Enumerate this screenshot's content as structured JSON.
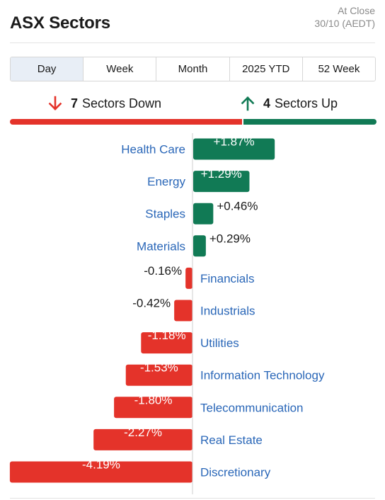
{
  "header": {
    "title": "ASX Sectors",
    "asof_line1": "At Close",
    "asof_line2": "30/10 (AEDT)"
  },
  "tabs": [
    {
      "label": "Day",
      "active": true
    },
    {
      "label": "Week",
      "active": false
    },
    {
      "label": "Month",
      "active": false
    },
    {
      "label": "2025 YTD",
      "active": false
    },
    {
      "label": "52 Week",
      "active": false
    }
  ],
  "summary": {
    "down_count": "7",
    "down_label": "Sectors Down",
    "up_count": "4",
    "up_label": "Sectors Up"
  },
  "colors": {
    "up": "#117a55",
    "down": "#e4332a",
    "label": "#2a67b8"
  },
  "chart_data": {
    "type": "bar",
    "orientation": "horizontal-diverging",
    "categories": [
      "Health Care",
      "Energy",
      "Staples",
      "Materials",
      "Financials",
      "Industrials",
      "Utilities",
      "Information Technology",
      "Telecommunication",
      "Real Estate",
      "Discretionary"
    ],
    "values": [
      1.87,
      1.29,
      0.46,
      0.29,
      -0.16,
      -0.42,
      -1.18,
      -1.53,
      -1.8,
      -2.27,
      -4.19
    ],
    "value_labels": [
      "+1.87%",
      "+1.29%",
      "+0.46%",
      "+0.29%",
      "-0.16%",
      "-0.42%",
      "-1.18%",
      "-1.53%",
      "-1.80%",
      "-2.27%",
      "-4.19%"
    ],
    "unit": "%",
    "title": "",
    "xlabel": "",
    "ylabel": ""
  }
}
